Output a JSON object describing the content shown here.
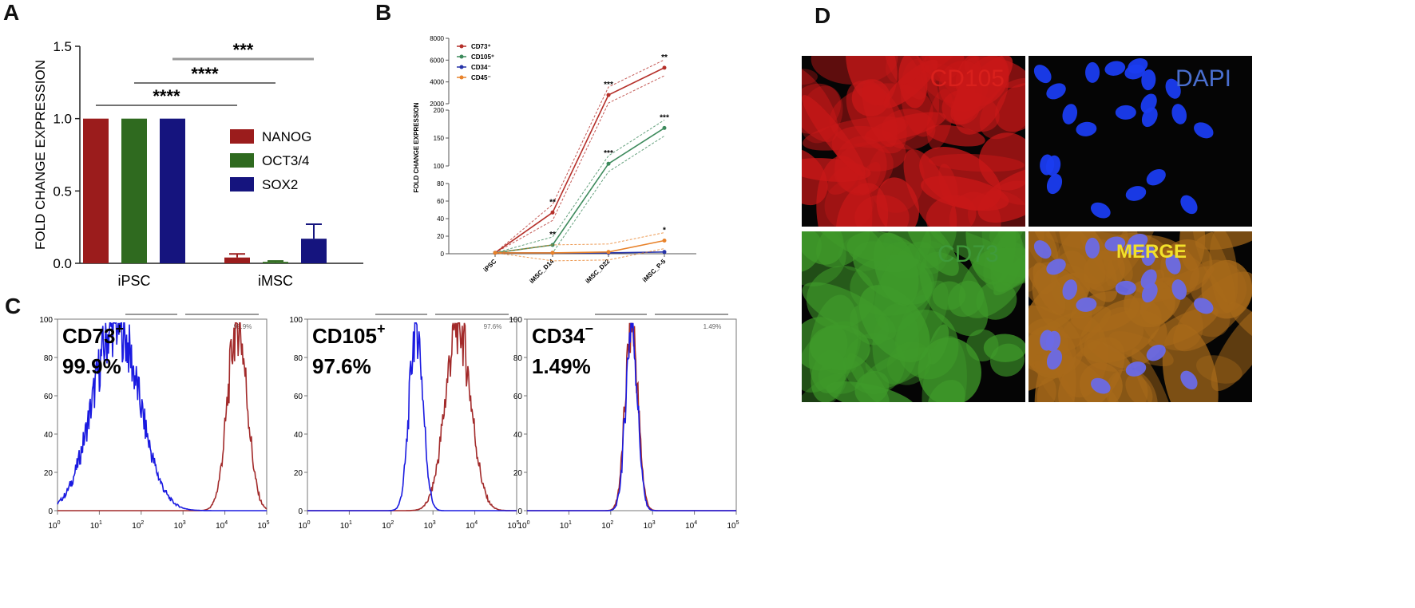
{
  "panels": {
    "a": "A",
    "b": "B",
    "c": "C",
    "d": "D"
  },
  "chart_data": [
    {
      "id": "A",
      "type": "bar",
      "ylabel": "FOLD CHANGE EXPRESSION",
      "ylim": [
        0,
        1.5
      ],
      "yticks": [
        "0.0",
        "0.5",
        "1.0",
        "1.5"
      ],
      "categories": [
        "iPSC",
        "iMSC"
      ],
      "series": [
        {
          "name": "NANOG",
          "color": "#9b1c1c",
          "values": [
            1.0,
            0.04
          ],
          "errors": [
            0,
            0.025
          ]
        },
        {
          "name": "OCT3/4",
          "color": "#2f6a1f",
          "values": [
            1.0,
            0.01
          ],
          "errors": [
            0,
            0.006
          ]
        },
        {
          "name": "SOX2",
          "color": "#15147e",
          "values": [
            1.0,
            0.17
          ],
          "errors": [
            0,
            0.1
          ]
        }
      ],
      "significance": [
        {
          "label": "****",
          "from": "iPSC-NANOG",
          "to": "iMSC-NANOG"
        },
        {
          "label": "****",
          "from": "iPSC-OCT3/4",
          "to": "iMSC-OCT3/4"
        },
        {
          "label": "***",
          "from": "iPSC-SOX2",
          "to": "iMSC-SOX2"
        }
      ],
      "legend_position": "right"
    },
    {
      "id": "B",
      "type": "line",
      "ylabel": "FOLD CHANGE EXPRESSION",
      "categories": [
        "iPSC",
        "iMSC_D14",
        "iMSC_D22",
        "iMSC_P-5"
      ],
      "axis_segments": [
        {
          "range": [
            0,
            80
          ],
          "ticks": [
            "0",
            "20",
            "40",
            "60",
            "80"
          ]
        },
        {
          "range": [
            100,
            200
          ],
          "ticks": [
            "100",
            "150",
            "200"
          ]
        },
        {
          "range": [
            2000,
            8000
          ],
          "ticks": [
            "2000",
            "4000",
            "6000",
            "8000"
          ]
        }
      ],
      "series": [
        {
          "name": "CD73⁺",
          "color": "#b5302a",
          "values": [
            1,
            47,
            2800,
            5300
          ],
          "stars": [
            "",
            "**",
            "***",
            "**"
          ]
        },
        {
          "name": "CD105⁺",
          "color": "#3d8a5c",
          "values": [
            1,
            10,
            104,
            168
          ],
          "stars": [
            "",
            "**",
            "***",
            "***"
          ]
        },
        {
          "name": "CD34⁻",
          "color": "#2633a8",
          "values": [
            1,
            1,
            1,
            2
          ],
          "stars": [
            "",
            "",
            "",
            ""
          ]
        },
        {
          "name": "CD45⁻",
          "color": "#e8822a",
          "values": [
            1,
            1,
            2,
            15
          ],
          "stars": [
            "",
            "",
            "",
            "*"
          ]
        }
      ],
      "legend_position": "top-left"
    },
    {
      "id": "C",
      "type": "histogram",
      "plots": [
        {
          "marker": "CD73",
          "sign": "+",
          "percent": "99.9%",
          "gate_text": "99.9%",
          "control_peak_log": 1.4,
          "control_width": 0.55,
          "stain_peak_log": 4.3,
          "stain_width": 0.23
        },
        {
          "marker": "CD105",
          "sign": "+",
          "percent": "97.6%",
          "gate_text": "97.6%",
          "control_peak_log": 2.6,
          "control_width": 0.16,
          "stain_peak_log": 3.6,
          "stain_width": 0.3
        },
        {
          "marker": "CD34",
          "sign": "−",
          "percent": "1.49%",
          "gate_text": "1.49%",
          "control_peak_log": 2.5,
          "control_width": 0.14,
          "stain_peak_log": 2.5,
          "stain_width": 0.15
        }
      ],
      "yticks": [
        "0",
        "20",
        "40",
        "60",
        "80",
        "100"
      ],
      "xtick_exponents": [
        "0",
        "1",
        "2",
        "3",
        "4",
        "5"
      ]
    }
  ],
  "microscopy": [
    {
      "label": "CD105",
      "label_color": "#d9201c"
    },
    {
      "label": "DAPI",
      "label_color": "#4a6fd0"
    },
    {
      "label": "CD73",
      "label_color": "#3f9a3a"
    },
    {
      "label": "MERGE",
      "label_color": "#f2e12a"
    }
  ]
}
